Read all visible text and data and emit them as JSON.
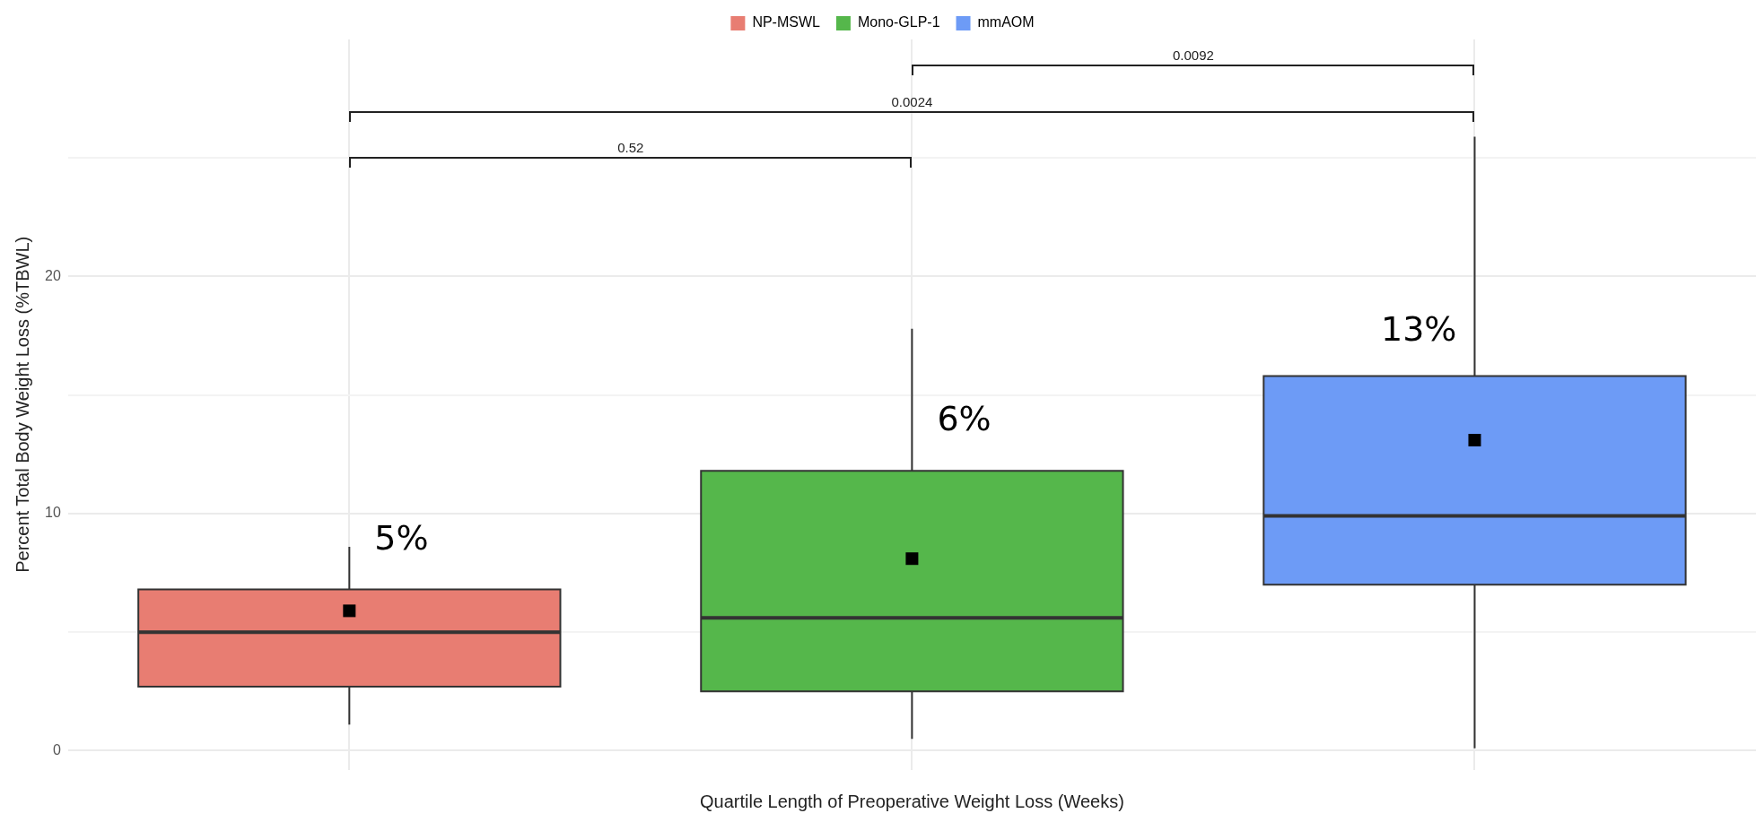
{
  "chart_data": {
    "type": "box",
    "xlabel": "Quartile Length of Preoperative Weight Loss (Weeks)",
    "ylabel": "Percent Total Body Weight Loss (%TBWL)",
    "categories": [
      null,
      null,
      null
    ],
    "series": [
      {
        "name": "NP-MSWL",
        "color": "#e87d72",
        "boxes": [
          {
            "low": 1.1,
            "q1": 2.7,
            "median": 5.0,
            "q3": 6.8,
            "high": 8.6,
            "mean": 5.9
          },
          null,
          null
        ]
      },
      {
        "name": "Mono-GLP-1",
        "color": "#55b74b",
        "boxes": [
          null,
          {
            "low": 0.5,
            "q1": 2.5,
            "median": 5.6,
            "q3": 11.8,
            "high": 17.8,
            "mean": 8.1
          },
          null
        ]
      },
      {
        "name": "mmAOM",
        "color": "#6d9bf6",
        "boxes": [
          null,
          null,
          {
            "low": 0.1,
            "q1": 7.0,
            "median": 9.9,
            "q3": 15.8,
            "high": 25.9,
            "mean": 13.1
          }
        ]
      }
    ],
    "ylim": [
      -0.8,
      30
    ],
    "yticks": [
      0,
      {
        "value": 5,
        "label": null
      },
      10,
      {
        "value": 15,
        "label": null
      },
      20,
      {
        "value": 25,
        "label": null
      }
    ],
    "grid": true,
    "legend": "top",
    "marker": "square",
    "annotations": [
      "0.0092",
      "0.0024",
      "0.52",
      "5%",
      "6%",
      "13%"
    ]
  }
}
